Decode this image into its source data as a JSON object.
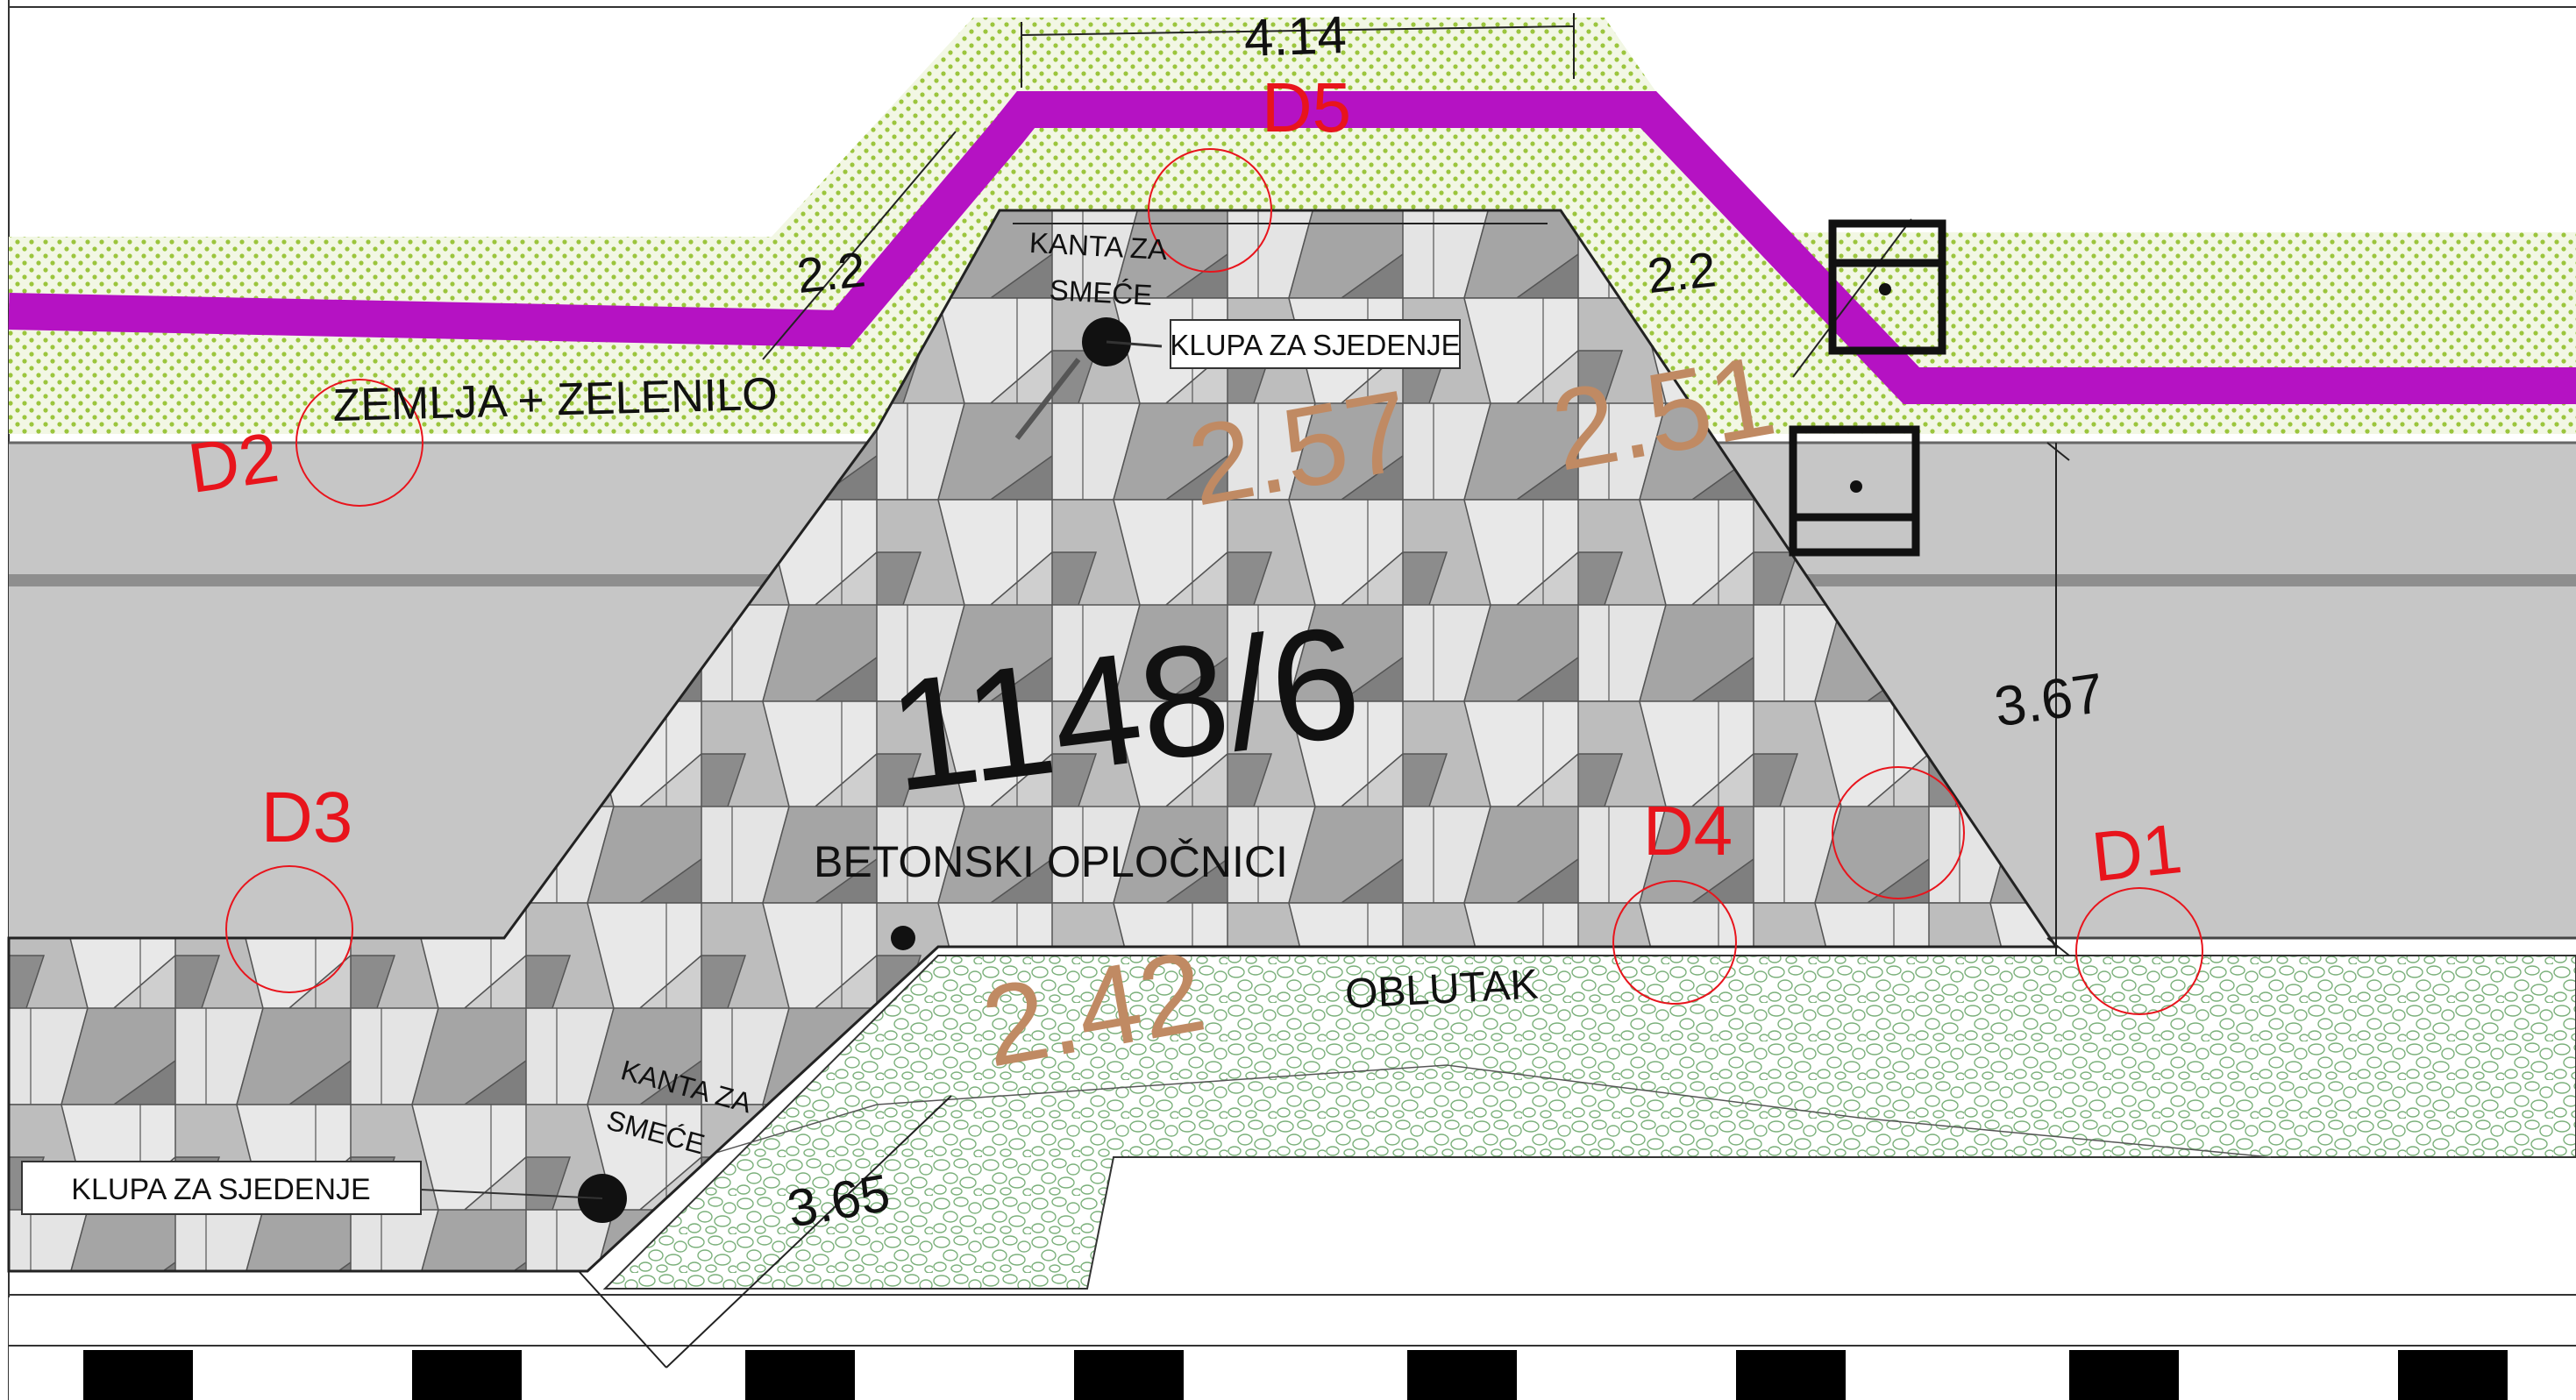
{
  "parcel_number": "1148/6",
  "zone_labels": {
    "soil_greenery": "ZEMLJA + ZELENILO",
    "concrete_pavers": "BETONSKI OPLOČNICI",
    "pebbles": "OBLUTAK"
  },
  "furniture_labels": {
    "bench_top": "KLUPA ZA SJEDENJE",
    "bench_bottom": "KLUPA ZA SJEDENJE",
    "trash_top_line1": "KANTA ZA",
    "trash_top_line2": "SMEĆE",
    "trash_bottom_line1": "KANTA ZA",
    "trash_bottom_line2": "SMEĆE"
  },
  "detail_markers": {
    "d1": "D1",
    "d2": "D2",
    "d3": "D3",
    "d4": "D4",
    "d5": "D5"
  },
  "dimensions": {
    "top_width": "4.14",
    "left_slope": "2.2",
    "right_slope": "2.2",
    "right_height": "3.67",
    "bottom_slope": "3.65"
  },
  "elevations": {
    "e1": "2.57",
    "e2": "2.51",
    "e3": "2.42"
  },
  "colors": {
    "boundary_line": "#b512c3",
    "detail_marker": "#e8141c",
    "elevation_text": "#c08a63",
    "road_gray": "#c6c6c6",
    "grass_dot": "#9bc53d"
  }
}
